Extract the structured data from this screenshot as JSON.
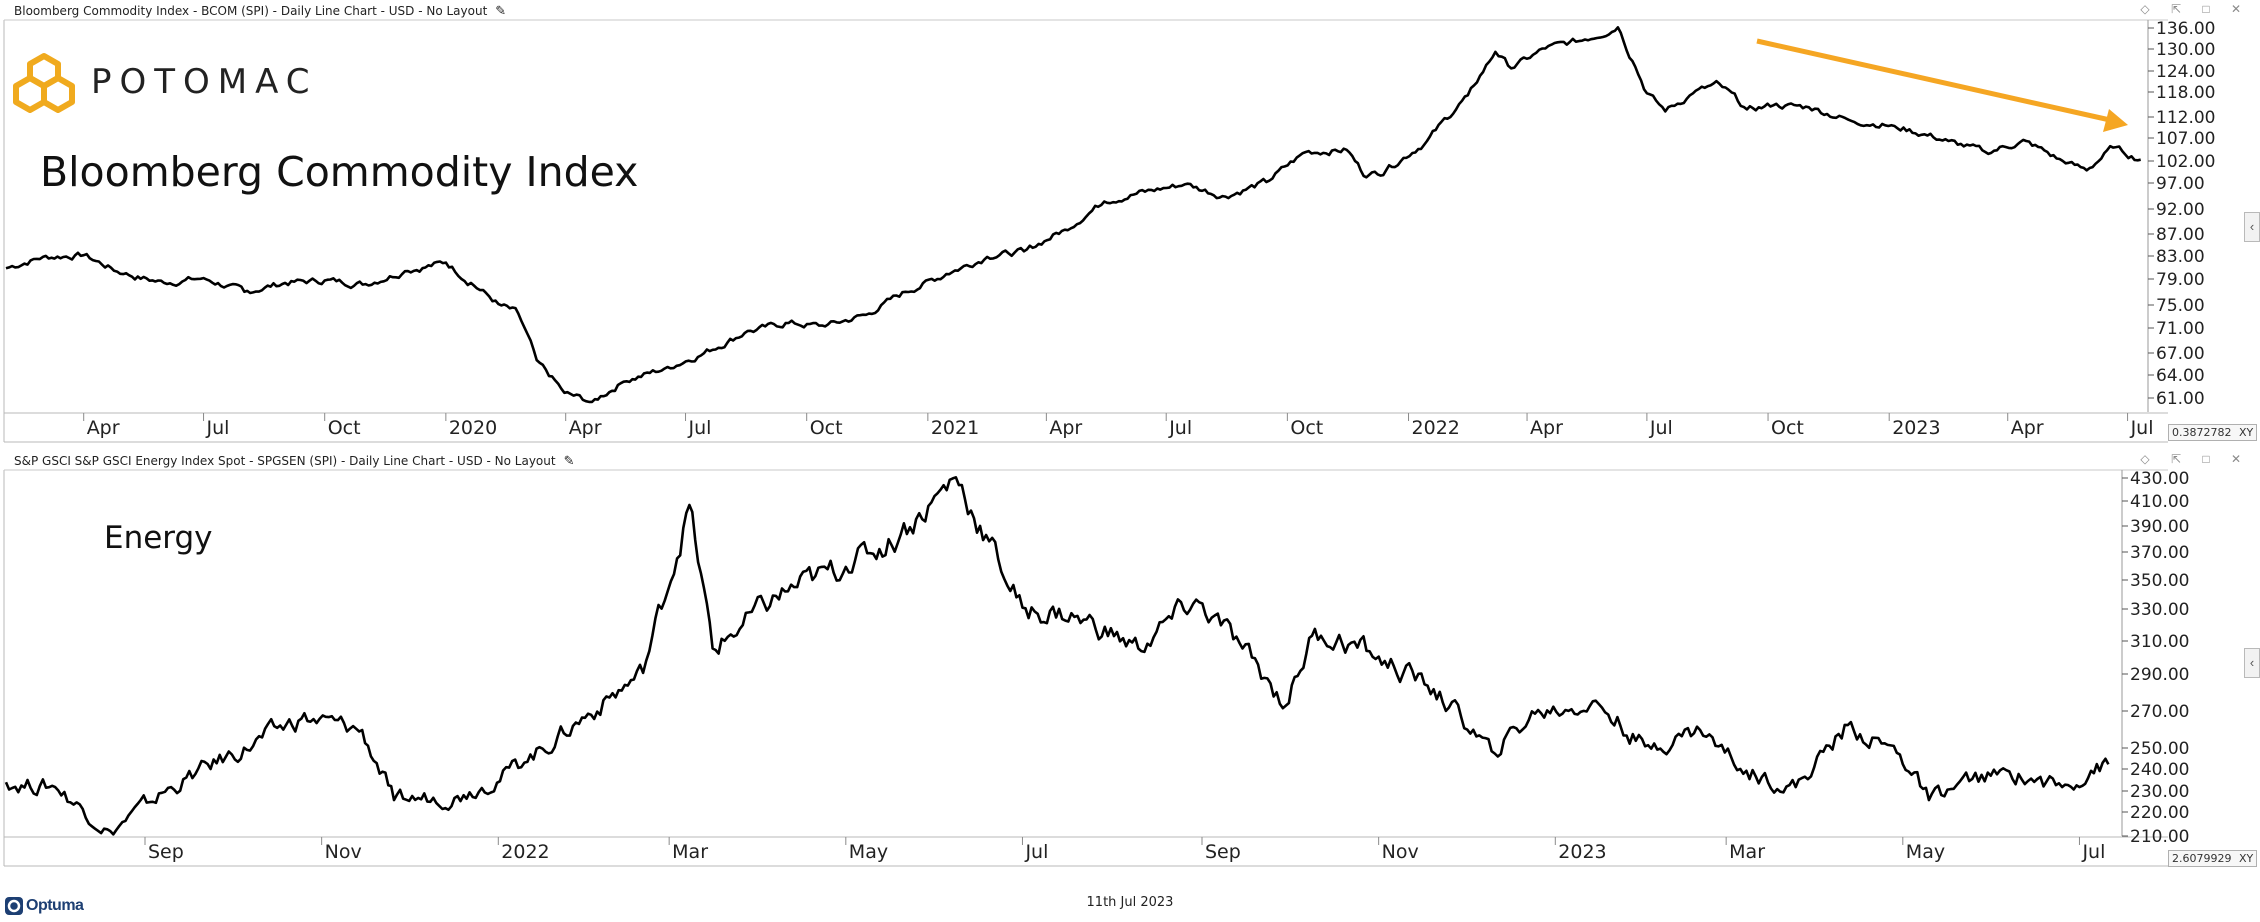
{
  "window": {
    "controls": "◇ ⇱ □ ✕"
  },
  "footer": {
    "brand": "Optuma",
    "date": "11th Jul 2023"
  },
  "logo": {
    "text": "POTOMAC"
  },
  "colors": {
    "line": "#000000",
    "trend_arrow": "#f5a623",
    "logo": "#f0aa1e"
  },
  "top_pane": {
    "title": "Bloomberg Commodity Index - BCOM (SPI) - Daily Line Chart - USD - No Layout",
    "chart_label": "Bloomberg Commodity Index",
    "corner_value": "0.3872782",
    "corner_mode": "XY"
  },
  "bottom_pane": {
    "title": "S&P GSCI S&P GSCI Energy Index Spot - SPGSEN (SPI) - Daily Line Chart - USD - No Layout",
    "chart_label": "Energy",
    "corner_value": "2.6079929",
    "corner_mode": "XY"
  },
  "chart_data": [
    {
      "type": "line",
      "title": "Bloomberg Commodity Index",
      "y_scale": "log",
      "ylim": [
        59,
        136.5
      ],
      "y_ticks": [
        "136.00",
        "130.00",
        "124.00",
        "118.00",
        "112.00",
        "107.00",
        "102.00",
        "97.00",
        "92.00",
        "87.00",
        "83.00",
        "79.00",
        "75.00",
        "71.00",
        "67.00",
        "64.00",
        "61.00"
      ],
      "x_range": [
        "2019-02-01",
        "2023-07-15"
      ],
      "x_ticks": [
        {
          "label": "Apr",
          "date": "2019-04-01"
        },
        {
          "label": "Jul",
          "date": "2019-07-01"
        },
        {
          "label": "Oct",
          "date": "2019-10-01"
        },
        {
          "label": "2020",
          "date": "2020-01-01"
        },
        {
          "label": "Apr",
          "date": "2020-04-01"
        },
        {
          "label": "Jul",
          "date": "2020-07-01"
        },
        {
          "label": "Oct",
          "date": "2020-10-01"
        },
        {
          "label": "2021",
          "date": "2021-01-01"
        },
        {
          "label": "Apr",
          "date": "2021-04-01"
        },
        {
          "label": "Jul",
          "date": "2021-07-01"
        },
        {
          "label": "Oct",
          "date": "2021-10-01"
        },
        {
          "label": "2022",
          "date": "2022-01-01"
        },
        {
          "label": "Apr",
          "date": "2022-04-01"
        },
        {
          "label": "Jul",
          "date": "2022-07-01"
        },
        {
          "label": "Oct",
          "date": "2022-10-01"
        },
        {
          "label": "2023",
          "date": "2023-01-01"
        },
        {
          "label": "Apr",
          "date": "2023-04-01"
        },
        {
          "label": "Jul",
          "date": "2023-07-01"
        }
      ],
      "series": [
        {
          "values": [
            [
              "2019-02-01",
              80.5
            ],
            [
              "2019-03-01",
              82.5
            ],
            [
              "2019-04-01",
              82.8
            ],
            [
              "2019-05-01",
              79.5
            ],
            [
              "2019-06-01",
              78.0
            ],
            [
              "2019-07-01",
              78.8
            ],
            [
              "2019-08-01",
              76.5
            ],
            [
              "2019-09-01",
              78.0
            ],
            [
              "2019-10-01",
              78.4
            ],
            [
              "2019-11-01",
              77.8
            ],
            [
              "2019-12-01",
              80.0
            ],
            [
              "2020-01-01",
              81.5
            ],
            [
              "2020-01-20",
              78.0
            ],
            [
              "2020-02-10",
              74.5
            ],
            [
              "2020-02-25",
              73.0
            ],
            [
              "2020-03-10",
              66.0
            ],
            [
              "2020-03-31",
              61.5
            ],
            [
              "2020-04-21",
              60.3
            ],
            [
              "2020-05-15",
              63.0
            ],
            [
              "2020-06-15",
              64.8
            ],
            [
              "2020-07-15",
              67.0
            ],
            [
              "2020-08-15",
              70.0
            ],
            [
              "2020-09-15",
              71.5
            ],
            [
              "2020-10-15",
              71.0
            ],
            [
              "2020-11-15",
              72.8
            ],
            [
              "2020-12-15",
              76.5
            ],
            [
              "2021-01-15",
              79.5
            ],
            [
              "2021-02-15",
              82.5
            ],
            [
              "2021-03-15",
              83.5
            ],
            [
              "2021-04-15",
              87.5
            ],
            [
              "2021-05-15",
              93.0
            ],
            [
              "2021-06-15",
              95.0
            ],
            [
              "2021-07-15",
              96.5
            ],
            [
              "2021-08-15",
              94.0
            ],
            [
              "2021-09-15",
              97.0
            ],
            [
              "2021-10-15",
              103.5
            ],
            [
              "2021-11-15",
              104.0
            ],
            [
              "2021-11-30",
              98.0
            ],
            [
              "2021-12-15",
              99.5
            ],
            [
              "2022-01-15",
              106.0
            ],
            [
              "2022-02-15",
              117.0
            ],
            [
              "2022-03-08",
              128.5
            ],
            [
              "2022-03-20",
              124.0
            ],
            [
              "2022-04-15",
              129.5
            ],
            [
              "2022-05-15",
              132.0
            ],
            [
              "2022-06-09",
              135.5
            ],
            [
              "2022-06-20",
              126.0
            ],
            [
              "2022-07-01",
              117.5
            ],
            [
              "2022-07-15",
              113.0
            ],
            [
              "2022-08-05",
              117.5
            ],
            [
              "2022-08-25",
              120.0
            ],
            [
              "2022-09-15",
              113.5
            ],
            [
              "2022-10-05",
              114.5
            ],
            [
              "2022-11-01",
              114.0
            ],
            [
              "2022-12-01",
              111.0
            ],
            [
              "2023-01-05",
              109.5
            ],
            [
              "2023-02-15",
              106.0
            ],
            [
              "2023-03-15",
              103.5
            ],
            [
              "2023-04-15",
              106.0
            ],
            [
              "2023-05-15",
              101.0
            ],
            [
              "2023-05-31",
              99.5
            ],
            [
              "2023-06-20",
              104.5
            ],
            [
              "2023-07-11",
              101.8
            ]
          ]
        }
      ]
    },
    {
      "type": "line",
      "title": "Energy",
      "ylim": [
        210,
        432
      ],
      "y_ticks": [
        "430.00",
        "410.00",
        "390.00",
        "370.00",
        "350.00",
        "330.00",
        "310.00",
        "290.00",
        "270.00",
        "250.00",
        "240.00",
        "230.00",
        "220.00",
        "210.00"
      ],
      "x_range": [
        "2021-07-15",
        "2023-07-15"
      ],
      "x_ticks": [
        {
          "label": "Sep",
          "date": "2021-09-01"
        },
        {
          "label": "Nov",
          "date": "2021-11-01"
        },
        {
          "label": "2022",
          "date": "2022-01-01"
        },
        {
          "label": "Mar",
          "date": "2022-03-01"
        },
        {
          "label": "May",
          "date": "2022-05-01"
        },
        {
          "label": "Jul",
          "date": "2022-07-01"
        },
        {
          "label": "Sep",
          "date": "2022-09-01"
        },
        {
          "label": "Nov",
          "date": "2022-11-01"
        },
        {
          "label": "2023",
          "date": "2023-01-01"
        },
        {
          "label": "Mar",
          "date": "2023-03-01"
        },
        {
          "label": "May",
          "date": "2023-05-01"
        },
        {
          "label": "Jul",
          "date": "2023-07-01"
        }
      ],
      "series": [
        {
          "values": [
            [
              "2021-07-15",
              243
            ],
            [
              "2021-08-01",
              240
            ],
            [
              "2021-08-20",
              213
            ],
            [
              "2021-09-10",
              240
            ],
            [
              "2021-10-01",
              260
            ],
            [
              "2021-10-25",
              282
            ],
            [
              "2021-11-15",
              275
            ],
            [
              "2021-11-26",
              232
            ],
            [
              "2021-12-20",
              235
            ],
            [
              "2022-01-10",
              255
            ],
            [
              "2022-02-01",
              285
            ],
            [
              "2022-02-20",
              310
            ],
            [
              "2022-03-08",
              413
            ],
            [
              "2022-03-16",
              325
            ],
            [
              "2022-04-10",
              360
            ],
            [
              "2022-05-01",
              375
            ],
            [
              "2022-05-20",
              395
            ],
            [
              "2022-06-08",
              430
            ],
            [
              "2022-07-01",
              350
            ],
            [
              "2022-07-20",
              345
            ],
            [
              "2022-08-10",
              325
            ],
            [
              "2022-08-30",
              355
            ],
            [
              "2022-09-15",
              325
            ],
            [
              "2022-09-30",
              290
            ],
            [
              "2022-10-10",
              337
            ],
            [
              "2022-11-01",
              320
            ],
            [
              "2022-11-20",
              300
            ],
            [
              "2022-12-10",
              262
            ],
            [
              "2022-12-25",
              285
            ],
            [
              "2023-01-15",
              293
            ],
            [
              "2023-02-01",
              265
            ],
            [
              "2023-02-20",
              275
            ],
            [
              "2023-03-08",
              250
            ],
            [
              "2023-03-25",
              240
            ],
            [
              "2023-04-12",
              278
            ],
            [
              "2023-04-30",
              260
            ],
            [
              "2023-05-10",
              232
            ],
            [
              "2023-05-25",
              245
            ],
            [
              "2023-06-10",
              248
            ],
            [
              "2023-06-25",
              240
            ],
            [
              "2023-07-05",
              250
            ],
            [
              "2023-07-11",
              254
            ]
          ]
        }
      ]
    }
  ]
}
